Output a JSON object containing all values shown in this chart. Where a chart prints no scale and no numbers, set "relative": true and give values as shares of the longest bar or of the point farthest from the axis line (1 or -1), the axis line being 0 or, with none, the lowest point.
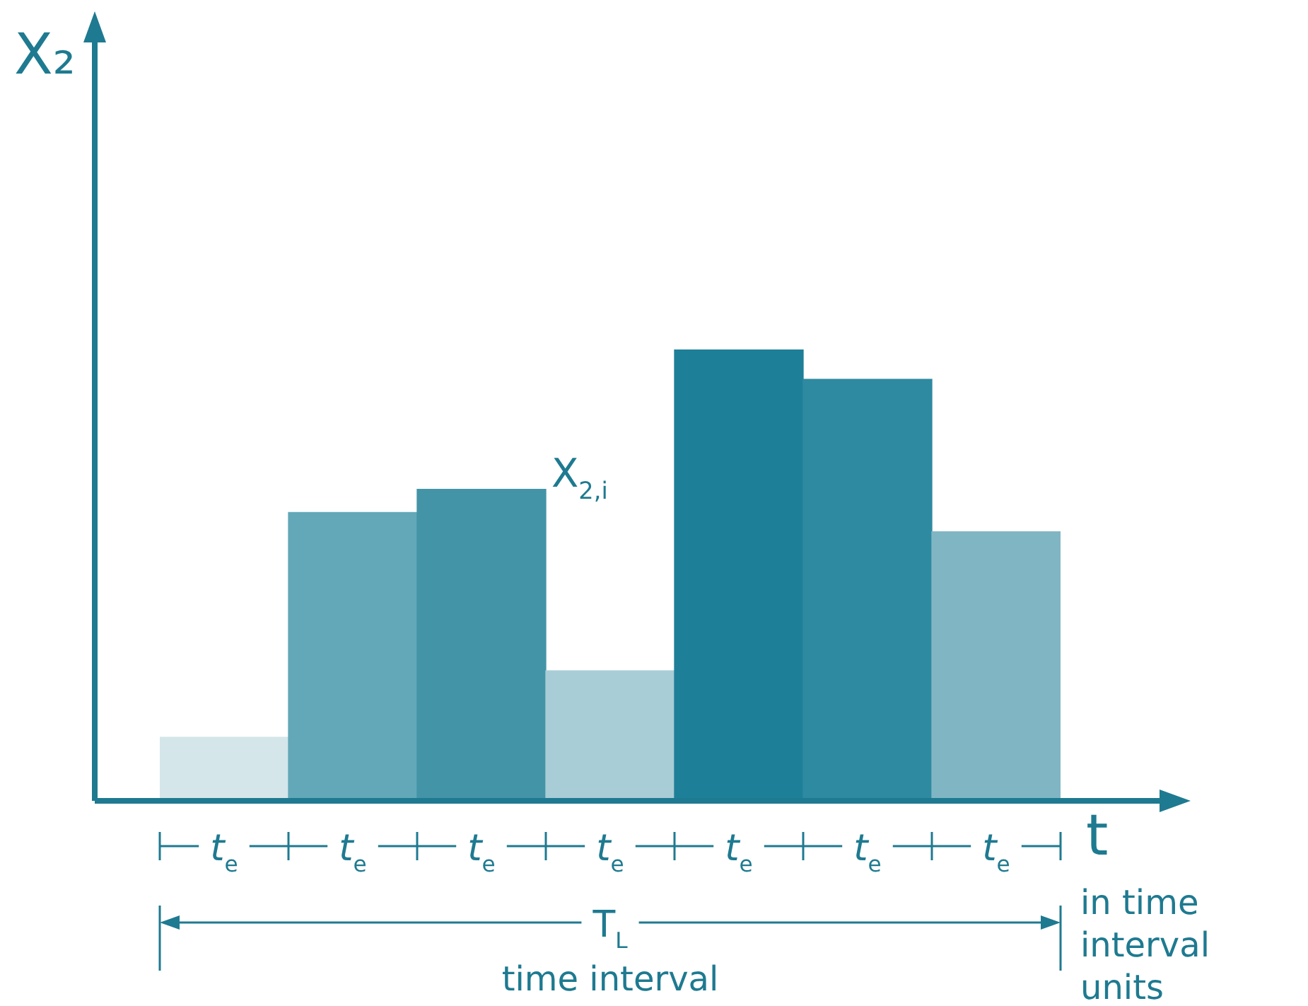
{
  "chart_data": {
    "type": "bar",
    "relative": true,
    "ylabel": "X₂",
    "xlabel": "t",
    "categories": [
      "t$_{e}$",
      "t$_{e}$",
      "t$_{e}$",
      "t$_{e}$",
      "t$_{e}$",
      "t$_{e}$",
      "t$_{e}$"
    ],
    "values": [
      0.141,
      0.639,
      0.69,
      0.288,
      1,
      0.934,
      0.596
    ],
    "colors": [
      "#d4e6ea",
      "#62a8b8",
      "#4494a8",
      "#a8cdd6",
      "#1e7f98",
      "#2e8aa0",
      "#80b6c4"
    ],
    "annotations": [
      "X$_{2,i}$",
      "T$_{L}$",
      "time interval",
      "in time interval units"
    ],
    "legend": false
  }
}
